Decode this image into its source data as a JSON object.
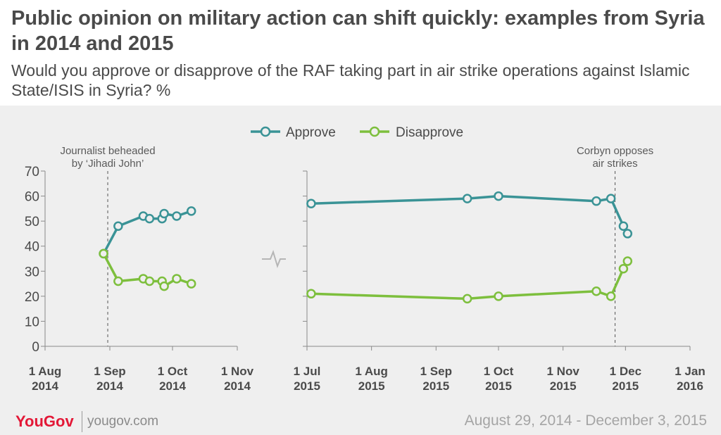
{
  "header": {
    "title": "Public opinion on military action can shift quickly: examples from Syria in 2014 and 2015",
    "subtitle": "Would you approve or disapprove of the RAF taking part in air strike operations against Islamic State/ISIS in Syria? %"
  },
  "footer": {
    "logo": "YouGov",
    "url": "yougov.com",
    "date_range": "August 29, 2014 - December 3, 2015"
  },
  "colors": {
    "approve": "#3a9396",
    "disapprove": "#7dbf3d",
    "axis": "#8a8a8a",
    "text": "#4a4a4a"
  },
  "chart_data": {
    "type": "line",
    "legend": {
      "placement": "top-center",
      "entries": [
        "Approve",
        "Disapprove"
      ]
    },
    "y_ticks": [
      "0",
      "10",
      "20",
      "30",
      "40",
      "50",
      "60",
      "70"
    ],
    "ylim": [
      0,
      70
    ],
    "panels": [
      {
        "id": "2014",
        "x_range": [
          "2014-08-01",
          "2014-11-01"
        ],
        "x_ticks": [
          {
            "date": "2014-08-01",
            "line1": "1 Aug",
            "line2": "2014"
          },
          {
            "date": "2014-09-01",
            "line1": "1 Sep",
            "line2": "2014"
          },
          {
            "date": "2014-10-01",
            "line1": "1 Oct",
            "line2": "2014"
          },
          {
            "date": "2014-11-01",
            "line1": "1 Nov",
            "line2": "2014"
          }
        ],
        "annotation": {
          "date": "2014-08-31",
          "line1": "Journalist beheaded",
          "line2": "by ‘Jihadi John’"
        },
        "series": [
          {
            "name": "Approve",
            "points": [
              [
                "2014-08-29",
                37
              ],
              [
                "2014-09-05",
                48
              ],
              [
                "2014-09-17",
                52
              ],
              [
                "2014-09-20",
                51
              ],
              [
                "2014-09-26",
                51
              ],
              [
                "2014-09-27",
                53
              ],
              [
                "2014-10-03",
                52
              ],
              [
                "2014-10-10",
                54
              ]
            ]
          },
          {
            "name": "Disapprove",
            "points": [
              [
                "2014-08-29",
                37
              ],
              [
                "2014-09-05",
                26
              ],
              [
                "2014-09-17",
                27
              ],
              [
                "2014-09-20",
                26
              ],
              [
                "2014-09-26",
                26
              ],
              [
                "2014-09-27",
                24
              ],
              [
                "2014-10-03",
                27
              ],
              [
                "2014-10-10",
                25
              ]
            ]
          }
        ]
      },
      {
        "id": "2015",
        "x_range": [
          "2015-07-01",
          "2016-01-01"
        ],
        "x_ticks": [
          {
            "date": "2015-07-01",
            "line1": "1 Jul",
            "line2": "2015"
          },
          {
            "date": "2015-08-01",
            "line1": "1 Aug",
            "line2": "2015"
          },
          {
            "date": "2015-09-01",
            "line1": "1 Sep",
            "line2": "2015"
          },
          {
            "date": "2015-10-01",
            "line1": "1 Oct",
            "line2": "2015"
          },
          {
            "date": "2015-11-01",
            "line1": "1 Nov",
            "line2": "2015"
          },
          {
            "date": "2015-12-01",
            "line1": "1 Dec",
            "line2": "2015"
          },
          {
            "date": "2016-01-01",
            "line1": "1 Jan",
            "line2": "2016"
          }
        ],
        "annotation": {
          "date": "2015-11-26",
          "line1": "Corbyn opposes",
          "line2": "air strikes"
        },
        "series": [
          {
            "name": "Approve",
            "points": [
              [
                "2015-07-03",
                57
              ],
              [
                "2015-09-16",
                59
              ],
              [
                "2015-10-01",
                60
              ],
              [
                "2015-11-17",
                58
              ],
              [
                "2015-11-24",
                59
              ],
              [
                "2015-11-30",
                48
              ],
              [
                "2015-12-02",
                45
              ]
            ]
          },
          {
            "name": "Disapprove",
            "points": [
              [
                "2015-07-03",
                21
              ],
              [
                "2015-09-16",
                19
              ],
              [
                "2015-10-01",
                20
              ],
              [
                "2015-11-17",
                22
              ],
              [
                "2015-11-24",
                20
              ],
              [
                "2015-11-30",
                31
              ],
              [
                "2015-12-02",
                34
              ]
            ]
          }
        ]
      }
    ]
  }
}
